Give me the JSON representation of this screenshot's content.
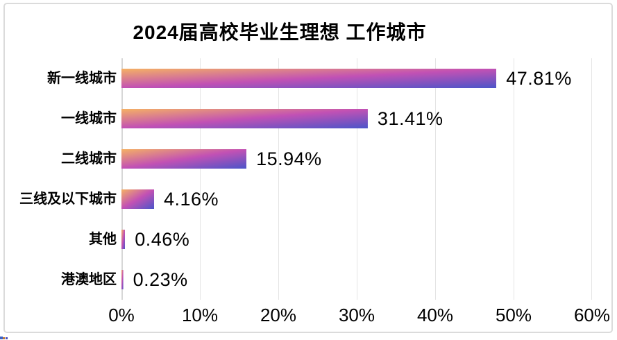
{
  "frame": {
    "background": "#FFFFFF",
    "border_color": "#DBDBDB"
  },
  "chart_data": {
    "type": "bar",
    "orientation": "horizontal",
    "title": "2024届高校毕业生理想 工作城市",
    "categories": [
      "新一线城市",
      "一线城市",
      "二线城市",
      "三线及以下城市",
      "其他",
      "港澳地区"
    ],
    "values": [
      47.81,
      31.41,
      15.94,
      4.16,
      0.46,
      0.23
    ],
    "value_labels": [
      "47.81%",
      "31.41%",
      "15.94%",
      "4.16%",
      "0.46%",
      "0.23%"
    ],
    "x_ticks": [
      "0%",
      "10%",
      "20%",
      "30%",
      "40%",
      "50%",
      "60%"
    ],
    "xlim": [
      0,
      60
    ],
    "grid": true,
    "legend_position": "none",
    "styles": {
      "bar_gradient_start": "#F5B164",
      "bar_gradient_mid": "#C251B4",
      "bar_gradient_end": "#4B54C9",
      "gridline_color": "#E4E4E4",
      "axis_line_color": "#D7D7D7",
      "text_color": "#000000"
    }
  }
}
